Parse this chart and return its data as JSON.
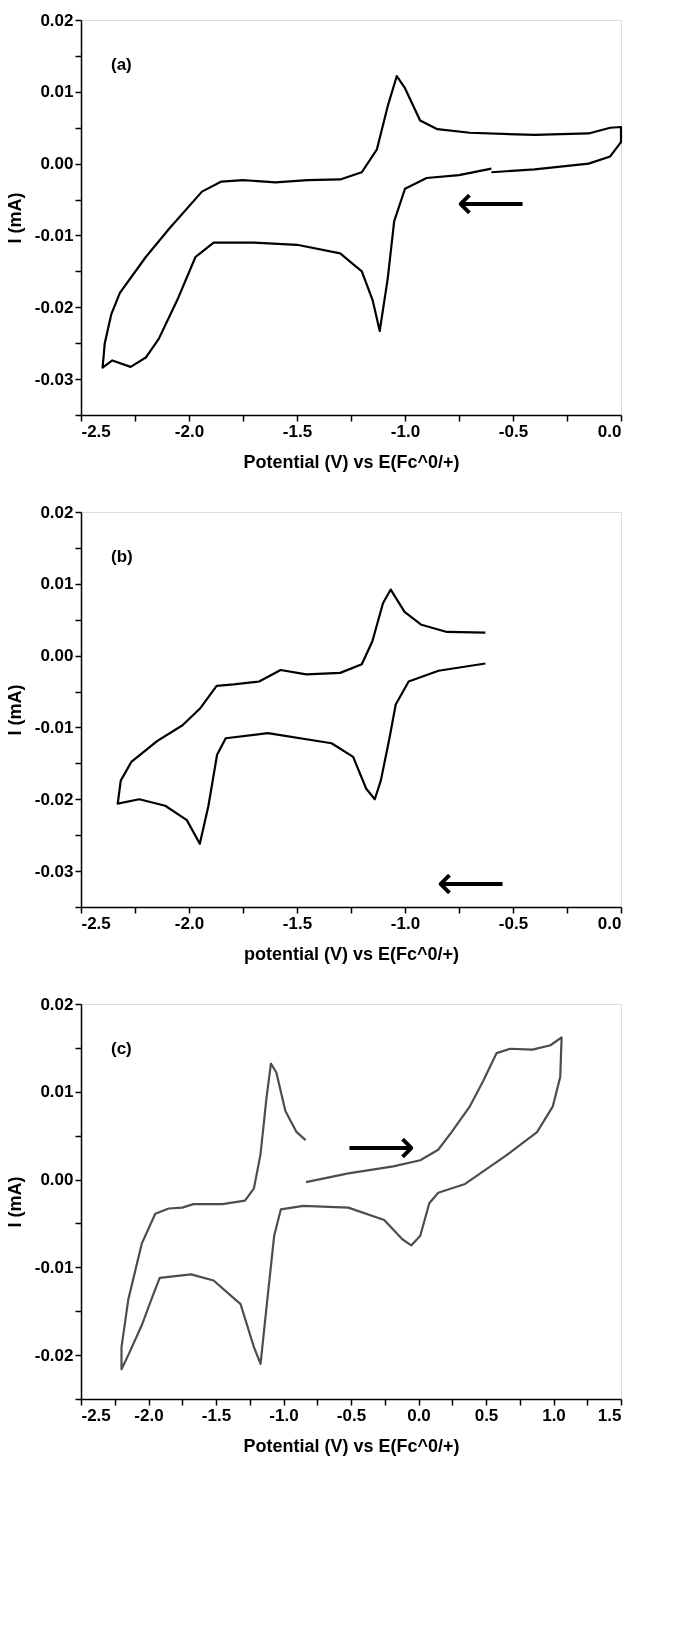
{
  "chart_data": [
    {
      "type": "line",
      "xlabel": "Potential (V) vs E(Fc^0/+)",
      "ylabel": "I (mA)",
      "xlim": [
        -2.5,
        0
      ],
      "ylim": [
        -0.035,
        0.02
      ],
      "xticks": [
        -2.5,
        {
          "value": -2.25,
          "label": null
        },
        {
          "value": -2.0,
          "label": "-2.0"
        },
        {
          "value": -1.75,
          "label": null
        },
        -1.5,
        {
          "value": -1.25,
          "label": null
        },
        {
          "value": -1.0,
          "label": "-1.0"
        },
        {
          "value": -0.75,
          "label": null
        },
        -0.5,
        {
          "value": -0.25,
          "label": null
        },
        {
          "value": 0,
          "label": "0.0"
        }
      ],
      "yticks": [
        {
          "value": -0.035,
          "label": null
        },
        -0.03,
        {
          "value": -0.025,
          "label": null
        },
        -0.02,
        {
          "value": -0.015,
          "label": null
        },
        -0.01,
        {
          "value": -0.005,
          "label": null
        },
        {
          "value": 0,
          "label": "0.00"
        },
        {
          "value": 0.005,
          "label": null
        },
        0.01,
        {
          "value": 0.015,
          "label": null
        },
        0.02
      ],
      "line_style": "solid",
      "annotations": [
        "(a)",
        "⟵"
      ],
      "series": [
        {
          "color": "#000000",
          "x": [
            -0.6,
            -0.75,
            -0.9,
            -1.0,
            -1.05,
            -1.08,
            -1.117,
            -1.15,
            -1.2,
            -1.3,
            -1.5,
            -1.7,
            -1.886,
            -1.97,
            -2.05,
            -2.14,
            -2.2,
            -2.27,
            -2.355,
            -2.4,
            -2.39,
            -2.36,
            -2.32,
            -2.2,
            -2.09,
            -1.94,
            -1.85,
            -1.75,
            -1.6,
            -1.45,
            -1.3,
            -1.2,
            -1.13,
            -1.08,
            -1.038,
            -1.0,
            -0.93,
            -0.85,
            -0.7,
            -0.4,
            -0.15,
            -0.05,
            0,
            0,
            -0.05,
            -0.15,
            -0.4,
            -0.6
          ],
          "values": [
            -0.0007,
            -0.0016,
            -0.002,
            -0.0035,
            -0.008,
            -0.016,
            -0.0233,
            -0.019,
            -0.015,
            -0.0125,
            -0.0113,
            -0.011,
            -0.011,
            -0.013,
            -0.0187,
            -0.0244,
            -0.027,
            -0.0283,
            -0.0274,
            -0.0284,
            -0.025,
            -0.021,
            -0.018,
            -0.013,
            -0.009,
            -0.0039,
            -0.0025,
            -0.0023,
            -0.0026,
            -0.0023,
            -0.0022,
            -0.0012,
            0.002,
            0.008,
            0.0122,
            0.0105,
            0.006,
            0.0048,
            0.0043,
            0.004,
            0.0042,
            0.005,
            0.0051,
            0.003,
            0.001,
            0.0,
            -0.0008,
            -0.0012
          ]
        }
      ]
    },
    {
      "type": "line",
      "xlabel": "potential (V) vs E(Fc^0/+)",
      "ylabel": "I (mA)",
      "xlim": [
        -2.5,
        0
      ],
      "ylim": [
        -0.035,
        0.02
      ],
      "xticks": [
        -2.5,
        {
          "value": -2.25,
          "label": null
        },
        {
          "value": -2.0,
          "label": "-2.0"
        },
        {
          "value": -1.75,
          "label": null
        },
        -1.5,
        {
          "value": -1.25,
          "label": null
        },
        {
          "value": -1.0,
          "label": "-1.0"
        },
        {
          "value": -0.75,
          "label": null
        },
        -0.5,
        {
          "value": -0.25,
          "label": null
        },
        {
          "value": 0,
          "label": "0.0"
        }
      ],
      "yticks": [
        {
          "value": -0.035,
          "label": null
        },
        -0.03,
        {
          "value": -0.025,
          "label": null
        },
        -0.02,
        {
          "value": -0.015,
          "label": null
        },
        -0.01,
        {
          "value": -0.005,
          "label": null
        },
        {
          "value": 0,
          "label": "0.00"
        },
        {
          "value": 0.005,
          "label": null
        },
        0.01,
        {
          "value": 0.015,
          "label": null
        },
        0.02
      ],
      "line_style": "solid",
      "annotations": [
        "(b)",
        "⟵"
      ],
      "series": [
        {
          "color": "#000000",
          "x": [
            -0.628,
            -0.845,
            -0.983,
            -1.043,
            -1.072,
            -1.112,
            -1.14,
            -1.18,
            -1.24,
            -1.34,
            -1.635,
            -1.83,
            -1.87,
            -1.91,
            -1.95,
            -2.01,
            -2.11,
            -2.23,
            -2.33,
            -2.316,
            -2.267,
            -2.148,
            -2.03,
            -1.95,
            -1.872,
            -1.793,
            -1.675,
            -1.576,
            -1.457,
            -1.3,
            -1.2,
            -1.151,
            -1.102,
            -1.066,
            -1.002,
            -0.924,
            -0.806,
            -0.628
          ],
          "values": [
            -0.0011,
            -0.0021,
            -0.0036,
            -0.0068,
            -0.0115,
            -0.0174,
            -0.02,
            -0.0185,
            -0.0141,
            -0.0122,
            -0.0108,
            -0.0115,
            -0.0138,
            -0.0209,
            -0.0262,
            -0.0229,
            -0.0209,
            -0.02,
            -0.0206,
            -0.0174,
            -0.0148,
            -0.0119,
            -0.0097,
            -0.0074,
            -0.0042,
            -0.004,
            -0.0036,
            -0.002,
            -0.0026,
            -0.0024,
            -0.0012,
            0.002,
            0.0073,
            0.0092,
            0.0061,
            0.0043,
            0.0033,
            0.0032
          ]
        }
      ]
    },
    {
      "type": "line",
      "xlabel": "Potential (V) vs E(Fc^0/+)",
      "ylabel": "I (mA)",
      "xlim": [
        -2.5,
        1.5
      ],
      "ylim": [
        -0.025,
        0.02
      ],
      "xticks": [
        -2.5,
        {
          "value": -2.25,
          "label": null
        },
        {
          "value": -2.0,
          "label": "-2.0"
        },
        {
          "value": -1.75,
          "label": null
        },
        -1.5,
        {
          "value": -1.25,
          "label": null
        },
        {
          "value": -1.0,
          "label": "-1.0"
        },
        {
          "value": -0.75,
          "label": null
        },
        -0.5,
        {
          "value": -0.25,
          "label": null
        },
        {
          "value": 0,
          "label": "0.0"
        },
        {
          "value": 0.25,
          "label": null
        },
        0.5,
        {
          "value": 0.75,
          "label": null
        },
        {
          "value": 1.0,
          "label": "1.0"
        },
        {
          "value": 1.25,
          "label": null
        },
        1.5
      ],
      "yticks": [
        {
          "value": -0.025,
          "label": null
        },
        -0.02,
        {
          "value": -0.015,
          "label": null
        },
        -0.01,
        {
          "value": -0.005,
          "label": null
        },
        {
          "value": 0,
          "label": "0.00"
        },
        {
          "value": 0.005,
          "label": null
        },
        0.01,
        {
          "value": 0.015,
          "label": null
        },
        0.02
      ],
      "line_style": "solid",
      "annotations": [
        "(c)",
        "⟶"
      ],
      "series": [
        {
          "color": "#4d4d4d",
          "x": [
            -0.833,
            -0.52,
            -0.187,
            0.013,
            0.146,
            0.245,
            0.379,
            0.478,
            0.578,
            0.678,
            0.845,
            0.978,
            1.06,
            1.05,
            0.994,
            0.878,
            0.645,
            0.345,
            0.146,
            0.08,
            0.013,
            -0.054,
            -0.12,
            -0.254,
            -0.52,
            -0.853,
            -1.02,
            -1.069,
            -1.12,
            -1.17,
            -1.219,
            -1.318,
            -1.518,
            -1.684,
            -1.917,
            -1.98,
            -2.05,
            -2.15,
            -2.2,
            -2.2,
            -2.15,
            -2.05,
            -1.95,
            -1.85,
            -1.75,
            -1.668,
            -1.452,
            -1.285,
            -1.219,
            -1.17,
            -1.126,
            -1.093,
            -1.053,
            -0.986,
            -0.903,
            -0.836
          ],
          "values": [
            -0.0003,
            0.0007,
            0.0015,
            0.0022,
            0.0034,
            0.0054,
            0.0083,
            0.0112,
            0.0144,
            0.0149,
            0.0148,
            0.0153,
            0.0162,
            0.0117,
            0.0083,
            0.0054,
            0.0027,
            -0.0005,
            -0.0015,
            -0.0027,
            -0.0064,
            -0.0075,
            -0.0068,
            -0.0046,
            -0.0032,
            -0.003,
            -0.0034,
            -0.0064,
            -0.0137,
            -0.021,
            -0.0191,
            -0.0142,
            -0.0115,
            -0.0108,
            -0.0112,
            -0.0137,
            -0.0166,
            -0.02,
            -0.0216,
            -0.0191,
            -0.0137,
            -0.0073,
            -0.0039,
            -0.0033,
            -0.0032,
            -0.0028,
            -0.0028,
            -0.0024,
            -0.001,
            0.0029,
            0.0093,
            0.0132,
            0.0122,
            0.0078,
            0.0054,
            0.0045
          ]
        }
      ]
    }
  ]
}
